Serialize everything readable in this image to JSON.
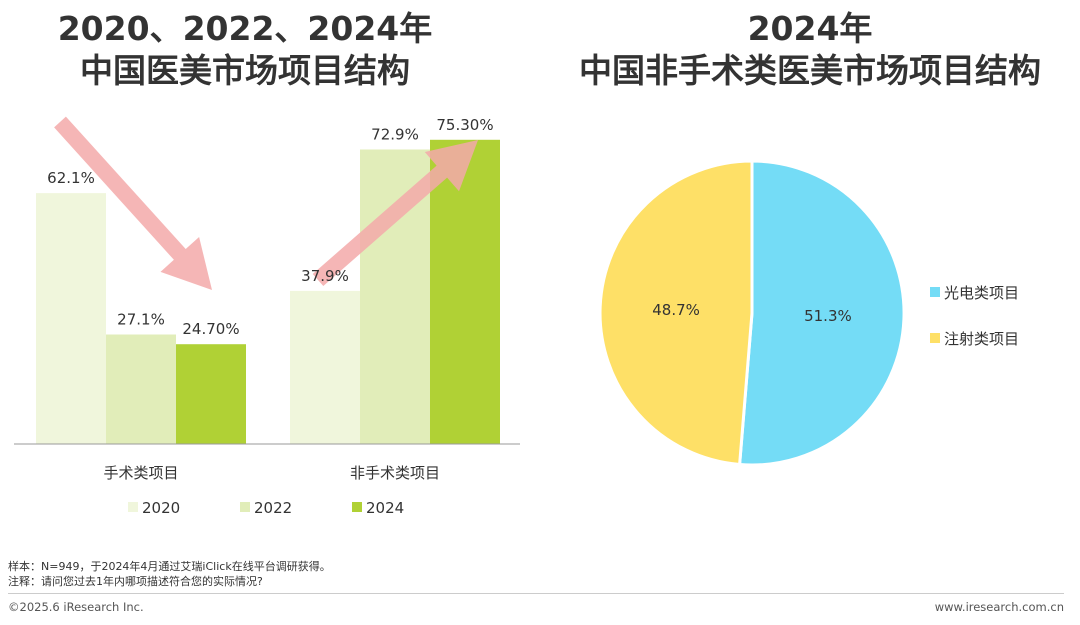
{
  "titles": {
    "left_line1": "2020、2022、2024年",
    "left_line2": "中国医美市场项目结构",
    "right_line1": "2024年",
    "right_line2": "中国非手术类医美市场项目结构"
  },
  "colors": {
    "c2020": "#f0f6dc",
    "c2022": "#e1edb9",
    "c2024": "#b0d135",
    "arrow": "#f3a9a9",
    "pie_blue": "#74dcf6",
    "pie_yellow": "#fee067"
  },
  "chart_data": [
    {
      "type": "bar",
      "categories": [
        "手术类项目",
        "非手术类项目"
      ],
      "series": [
        {
          "name": "2020",
          "values": [
            62.1,
            37.9
          ],
          "labels": [
            "62.1%",
            "37.9%"
          ]
        },
        {
          "name": "2022",
          "values": [
            27.1,
            72.9
          ],
          "labels": [
            "27.1%",
            "72.9%"
          ]
        },
        {
          "name": "2024",
          "values": [
            24.7,
            75.3
          ],
          "labels": [
            "24.70%",
            "75.30%"
          ]
        }
      ],
      "ylim": [
        0,
        100
      ],
      "legend": "bottom",
      "grid": false
    },
    {
      "type": "pie",
      "slices": [
        {
          "name": "光电类项目",
          "value": 51.3,
          "label": "51.3%"
        },
        {
          "name": "注射类项目",
          "value": 48.7,
          "label": "48.7%"
        }
      ],
      "legend": "right"
    }
  ],
  "notes": {
    "sample": "样本：N=949，于2024年4月通过艾瑞iClick在线平台调研获得。",
    "remark": "注释：请问您过去1年内哪项描述符合您的实际情况?"
  },
  "footer": {
    "copyright": "©2025.6 iResearch Inc.",
    "website": "www.iresearch.com.cn"
  }
}
